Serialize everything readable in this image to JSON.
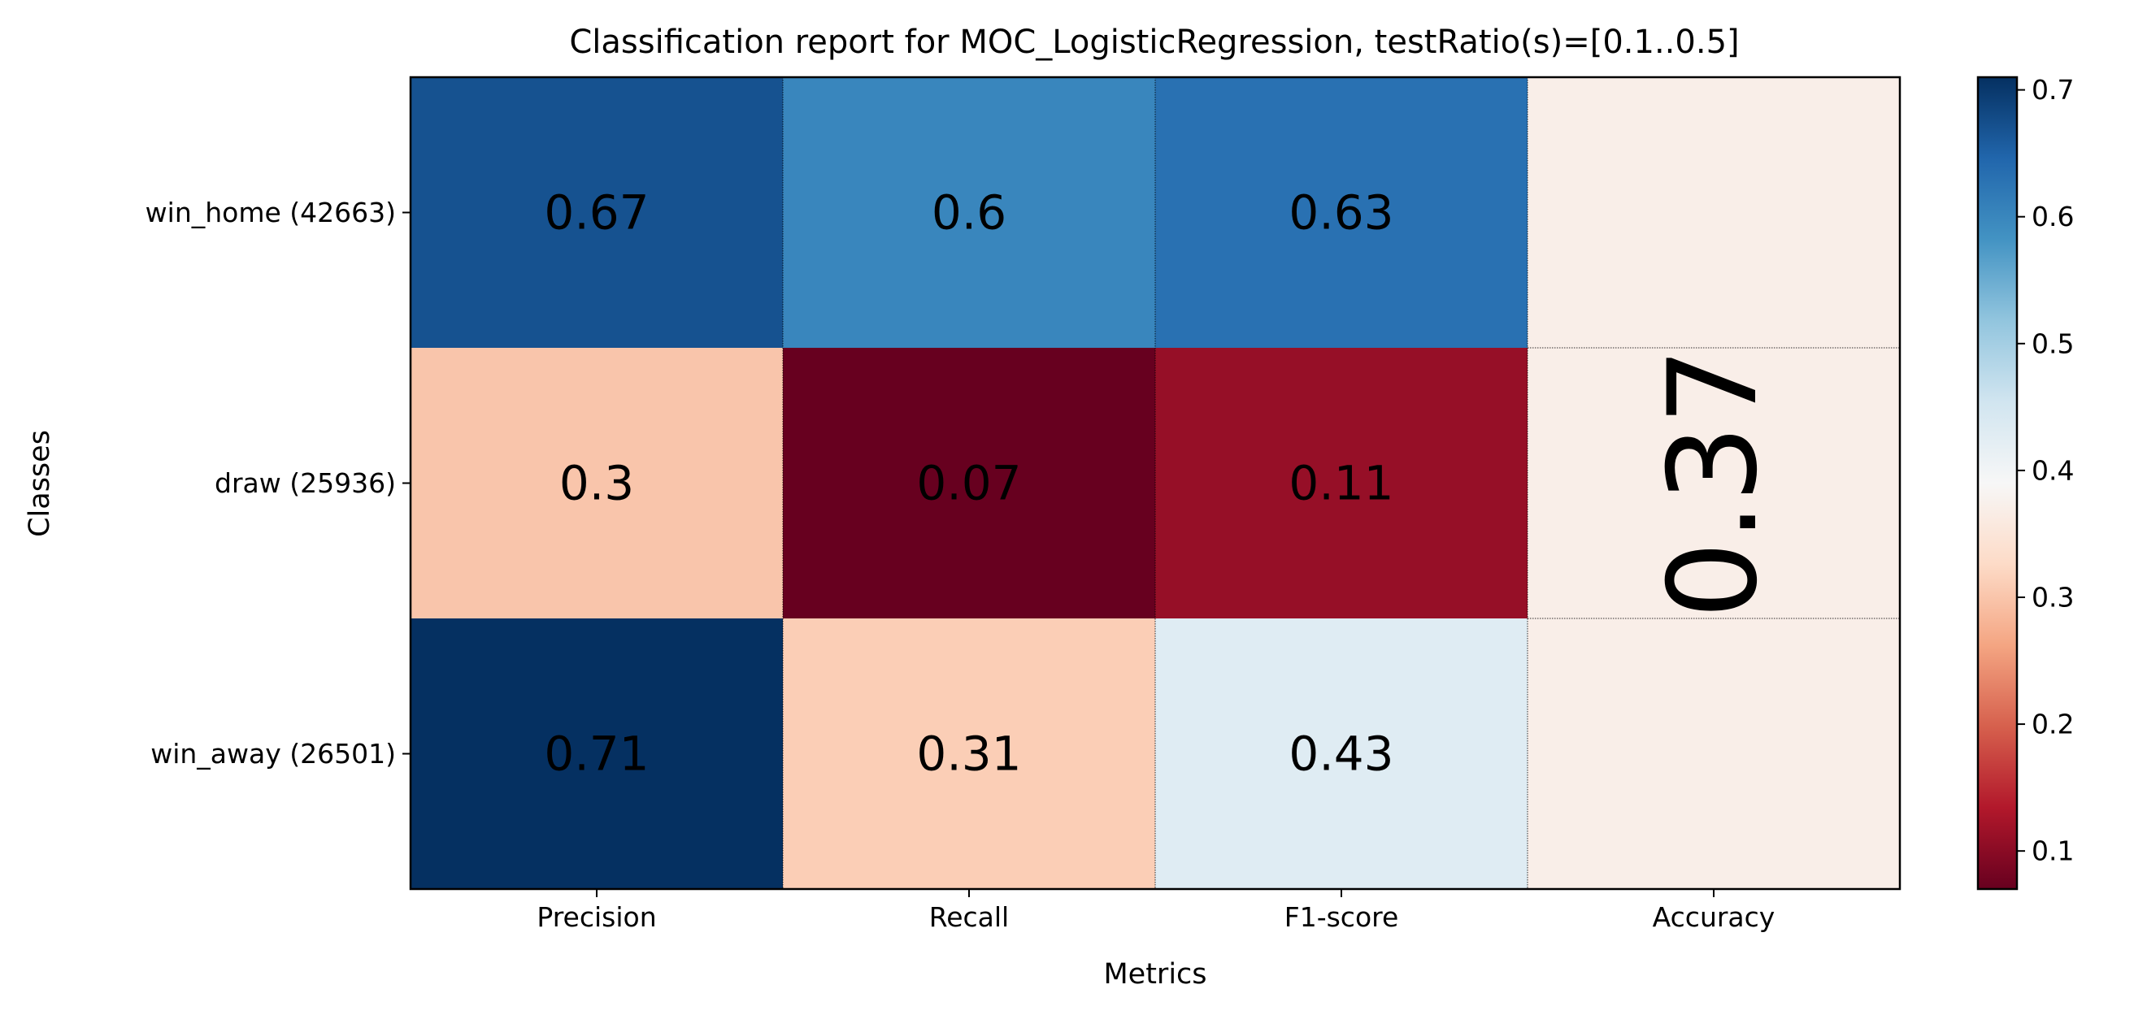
{
  "chart_data": {
    "type": "heatmap",
    "title": "Classification report for MOC_LogisticRegression, testRatio(s)=[0.1..0.5]",
    "xlabel": "Metrics",
    "ylabel": "Classes",
    "columns": [
      "Precision",
      "Recall",
      "F1-score",
      "Accuracy"
    ],
    "rows": [
      "win_home (42663)",
      "draw (25936)",
      "win_away (26501)"
    ],
    "values": [
      [
        0.67,
        0.6,
        0.63
      ],
      [
        0.3,
        0.07,
        0.11
      ],
      [
        0.71,
        0.31,
        0.43
      ]
    ],
    "value_labels": [
      [
        "0.67",
        "0.6",
        "0.63"
      ],
      [
        "0.3",
        "0.07",
        "0.11"
      ],
      [
        "0.71",
        "0.31",
        "0.43"
      ]
    ],
    "accuracy": 0.37,
    "accuracy_label": "0.37",
    "colormap": "RdBu",
    "colorbar_range": [
      0.07,
      0.71
    ],
    "colorbar_ticks": [
      "0.1",
      "0.2",
      "0.3",
      "0.4",
      "0.5",
      "0.6",
      "0.7"
    ],
    "grid": true
  }
}
